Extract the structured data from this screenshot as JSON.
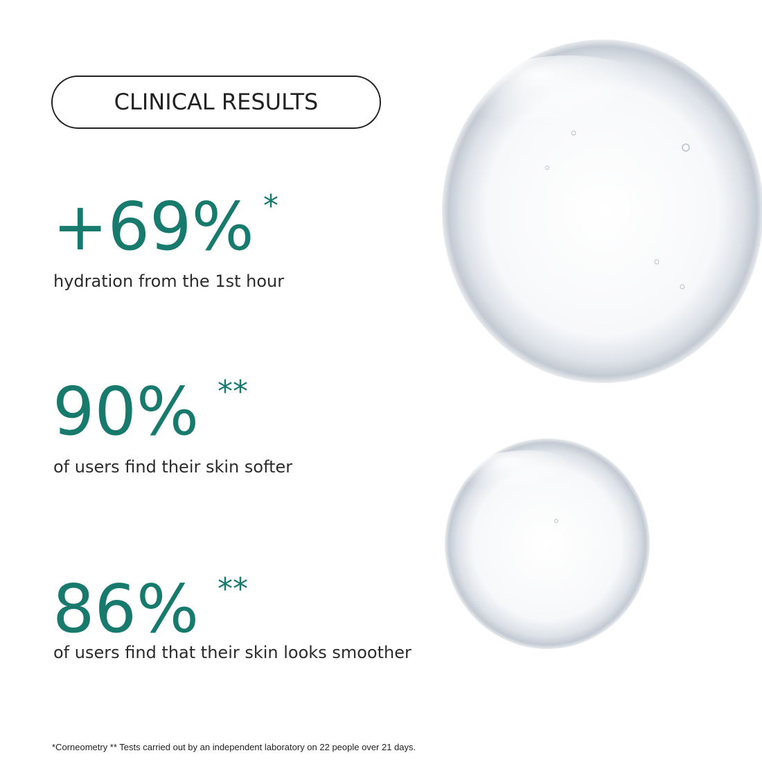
{
  "header": {
    "title": "CLINICAL RESULTS"
  },
  "stats": [
    {
      "value": "+69%",
      "mark": "*",
      "description": "hydration from the 1st hour"
    },
    {
      "value": "90%",
      "mark": "**",
      "description": "of users find their skin softer"
    },
    {
      "value": "86%",
      "mark": "**",
      "description": "of users find that their skin looks smoother"
    }
  ],
  "footnote": "*Corneometry ** Tests carried out by an independent laboratory on 22 people over 21 days."
}
